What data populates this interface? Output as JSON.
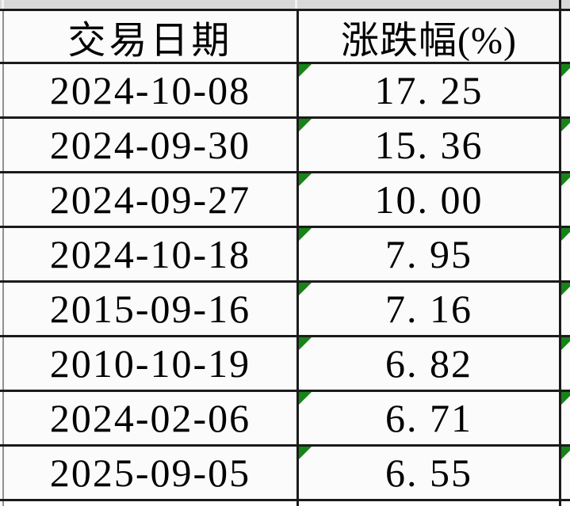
{
  "table": {
    "columns": [
      {
        "label": "交易日期"
      },
      {
        "label": "涨跌幅(%)"
      }
    ],
    "rows": [
      {
        "date": "2024-10-08",
        "change": "17. 25"
      },
      {
        "date": "2024-09-30",
        "change": "15. 36"
      },
      {
        "date": "2024-09-27",
        "change": "10. 00"
      },
      {
        "date": "2024-10-18",
        "change": "7. 95"
      },
      {
        "date": "2015-09-16",
        "change": "7. 16"
      },
      {
        "date": "2010-10-19",
        "change": "6. 82"
      },
      {
        "date": "2024-02-06",
        "change": "6. 71"
      },
      {
        "date": "2025-09-05",
        "change": "6. 55"
      }
    ]
  },
  "icons": {
    "text_format_flag": "green-corner-triangle"
  },
  "colors": {
    "flag_green": "#168416",
    "grid_black": "#1b1b1b",
    "gridline_gray": "#90909a",
    "top_strip_gray": "#d9d9d9",
    "cell_bg": "#fbfbfb"
  }
}
